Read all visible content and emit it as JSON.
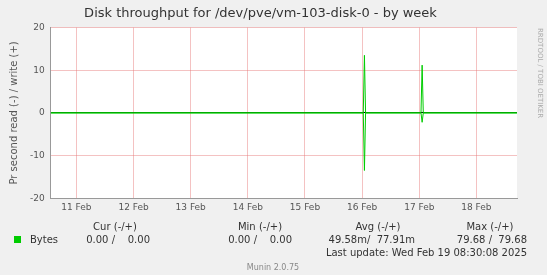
{
  "chart_data": {
    "type": "line",
    "title": "Disk throughput for /dev/pve/vm-103-disk-0 - by week",
    "y_label": "Pr second read (-) / write (+)",
    "side_text": "RRDTOOL / TOBI OETIKER",
    "x": [
      10.55,
      16.02,
      16.04,
      16.06,
      17.03,
      17.05,
      17.07,
      18.71
    ],
    "series": [
      {
        "name": "Bytes",
        "color": "#00cc00",
        "values": [
          0,
          0,
          13.5,
          0,
          0,
          11.2,
          0,
          0
        ],
        "read_values": [
          0,
          0,
          -13.5,
          0,
          0,
          -2.2,
          0,
          0
        ]
      }
    ],
    "xlim": [
      10.55,
      18.71
    ],
    "xticks": [
      {
        "value": 11,
        "label": "11 Feb"
      },
      {
        "value": 12,
        "label": "12 Feb"
      },
      {
        "value": 13,
        "label": "13 Feb"
      },
      {
        "value": 14,
        "label": "14 Feb"
      },
      {
        "value": 15,
        "label": "15 Feb"
      },
      {
        "value": 16,
        "label": "16 Feb"
      },
      {
        "value": 17,
        "label": "17 Feb"
      },
      {
        "value": 18,
        "label": "18 Feb"
      }
    ],
    "ylim": [
      -20,
      20
    ],
    "yticks": [
      -20,
      -10,
      0,
      10,
      20
    ],
    "grid": true,
    "legend_table": {
      "columns": [
        "Cur (-/+)",
        "Min (-/+)",
        "Avg (-/+)",
        "Max (-/+)"
      ],
      "cells": [
        "0.00 /    0.00",
        "0.00 /    0.00",
        "49.58m/  77.91m",
        "79.68 /  79.68"
      ]
    },
    "footer": "Last update: Wed Feb 19 08:30:08 2025",
    "credit": "Munin 2.0.75"
  }
}
